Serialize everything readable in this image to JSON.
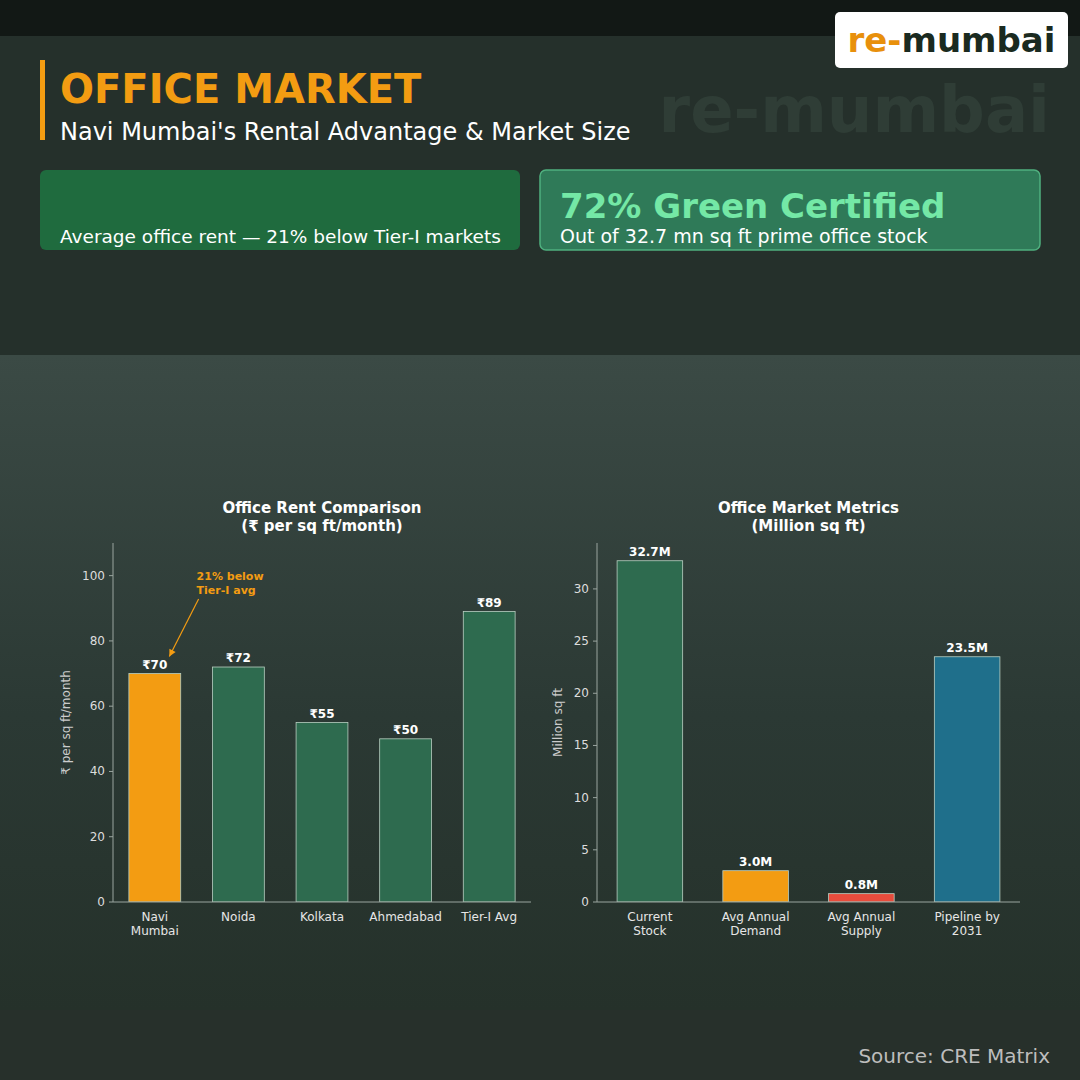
{
  "logo": {
    "prefix": "re-",
    "name": "mumbai"
  },
  "header": {
    "title": "OFFICE MARKET",
    "subtitle": "Navi Mumbai's Rental Advantage & Market Size"
  },
  "cards": [
    {
      "text": "Average office rent — 21% below Tier-I markets"
    },
    {
      "headline": "72% Green Certified",
      "text": "Out of 32.7 mn sq ft prime office stock"
    }
  ],
  "chart_data": [
    {
      "type": "bar",
      "title": "Office Rent Comparison",
      "subtitle": "(₹ per sq ft/month)",
      "y_label": "₹ per sq ft/month",
      "categories": [
        "Navi Mumbai",
        "Noida",
        "Kolkata",
        "Ahmedabad",
        "Tier-I Avg"
      ],
      "values": [
        70,
        72,
        55,
        50,
        89
      ],
      "value_labels": [
        "₹70",
        "₹72",
        "₹55",
        "₹50",
        "₹89"
      ],
      "colors": [
        "#f39c12",
        "#2e6b4f",
        "#2e6b4f",
        "#2e6b4f",
        "#2e6b4f"
      ],
      "ylim": [
        0,
        110
      ],
      "yticks": [
        0,
        20,
        40,
        60,
        80,
        100
      ],
      "grid": false,
      "data_labels": true,
      "annotation": "21% below Tier-I avg"
    },
    {
      "type": "bar",
      "title": "Office Market Metrics",
      "subtitle": "(Million sq ft)",
      "y_label": "Million sq ft",
      "categories": [
        "Current Stock",
        "Avg Annual Demand",
        "Avg Annual Supply",
        "Pipeline by 2031"
      ],
      "values": [
        32.7,
        3.0,
        0.8,
        23.5
      ],
      "value_labels": [
        "32.7M",
        "3.0M",
        "0.8M",
        "23.5M"
      ],
      "colors": [
        "#2e6b4f",
        "#f39c12",
        "#e74c3c",
        "#1f6f8b"
      ],
      "ylim": [
        0,
        34.4
      ],
      "yticks": [
        0,
        5,
        10,
        15,
        20,
        25,
        30
      ],
      "grid": false,
      "data_labels": true
    }
  ],
  "source": "Source: CRE Matrix"
}
